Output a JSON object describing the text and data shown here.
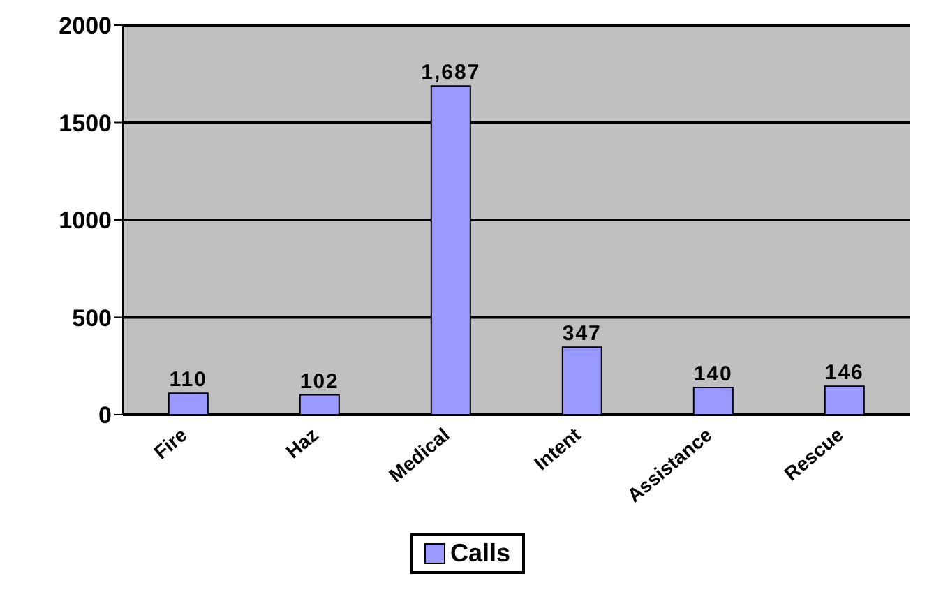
{
  "chart_data": {
    "type": "bar",
    "categories": [
      "Fire",
      "Haz",
      "Medical",
      "Intent",
      "Assistance",
      "Rescue"
    ],
    "series": [
      {
        "name": "Calls",
        "color": "#9999ff",
        "values": [
          110,
          102,
          1687,
          347,
          140,
          146
        ]
      }
    ],
    "value_labels": [
      "110",
      "102",
      "1,687",
      "347",
      "140",
      "146"
    ],
    "ylim": [
      0,
      2000
    ],
    "yticks": [
      0,
      500,
      1000,
      1500,
      2000
    ],
    "grid": "y",
    "legend": "bottom"
  }
}
